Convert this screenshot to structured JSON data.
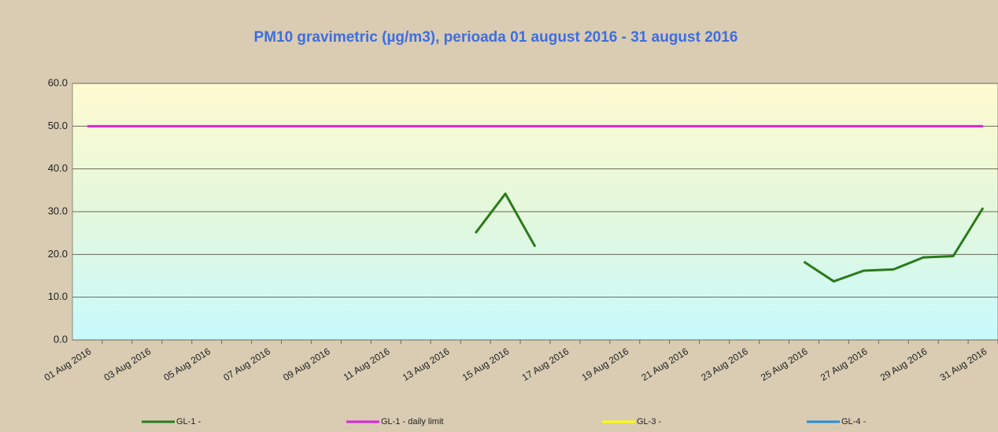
{
  "chart_data": {
    "type": "line",
    "title": "PM10 gravimetric (µg/m3), perioada 01 august 2016 - 31 august 2016",
    "categories": [
      "01 Aug 2016",
      null,
      "03 Aug 2016",
      null,
      "05 Aug 2016",
      null,
      "07 Aug 2016",
      null,
      "09 Aug 2016",
      null,
      "11 Aug 2016",
      null,
      "13 Aug 2016",
      null,
      "15 Aug 2016",
      null,
      "17 Aug 2016",
      null,
      "19 Aug 2016",
      null,
      "21 Aug 2016",
      null,
      "23 Aug 2016",
      null,
      "25 Aug 2016",
      null,
      "27 Aug 2016",
      null,
      "29 Aug 2016",
      null,
      "31 Aug 2016"
    ],
    "series": [
      {
        "name": "GL-1 -",
        "color": "#2a7a1a",
        "values": [
          null,
          null,
          null,
          null,
          null,
          null,
          null,
          null,
          null,
          null,
          null,
          null,
          null,
          25.0,
          34.2,
          21.8,
          null,
          null,
          null,
          null,
          null,
          null,
          null,
          null,
          18.3,
          13.7,
          16.2,
          16.5,
          19.3,
          19.6,
          30.9
        ]
      },
      {
        "name": "GL-1 - daily limit",
        "color": "#e020e0",
        "values": [
          50,
          50,
          50,
          50,
          50,
          50,
          50,
          50,
          50,
          50,
          50,
          50,
          50,
          50,
          50,
          50,
          50,
          50,
          50,
          50,
          50,
          50,
          50,
          50,
          50,
          50,
          50,
          50,
          50,
          50,
          50
        ]
      },
      {
        "name": "GL-3 -",
        "color": "#ffff00",
        "values": [
          null,
          null,
          null,
          null,
          null,
          null,
          null,
          null,
          null,
          null,
          null,
          null,
          null,
          null,
          null,
          null,
          null,
          null,
          null,
          null,
          null,
          null,
          null,
          null,
          null,
          null,
          null,
          null,
          null,
          null,
          null
        ]
      },
      {
        "name": "GL-4 -",
        "color": "#2090e0",
        "values": [
          null,
          null,
          null,
          null,
          null,
          null,
          null,
          null,
          null,
          null,
          null,
          null,
          null,
          null,
          null,
          null,
          null,
          null,
          null,
          null,
          null,
          null,
          null,
          null,
          null,
          null,
          null,
          null,
          null,
          null,
          null
        ]
      }
    ],
    "ylim": [
      0,
      60
    ],
    "yticks": [
      {
        "value": 0,
        "label": "0.0"
      },
      {
        "value": 10,
        "label": "10.0"
      },
      {
        "value": 20,
        "label": "20.0"
      },
      {
        "value": 30,
        "label": "30.0"
      },
      {
        "value": 40,
        "label": "40.0"
      },
      {
        "value": 50,
        "label": "50.0"
      },
      {
        "value": 60,
        "label": "60.0"
      }
    ],
    "grid": true
  }
}
